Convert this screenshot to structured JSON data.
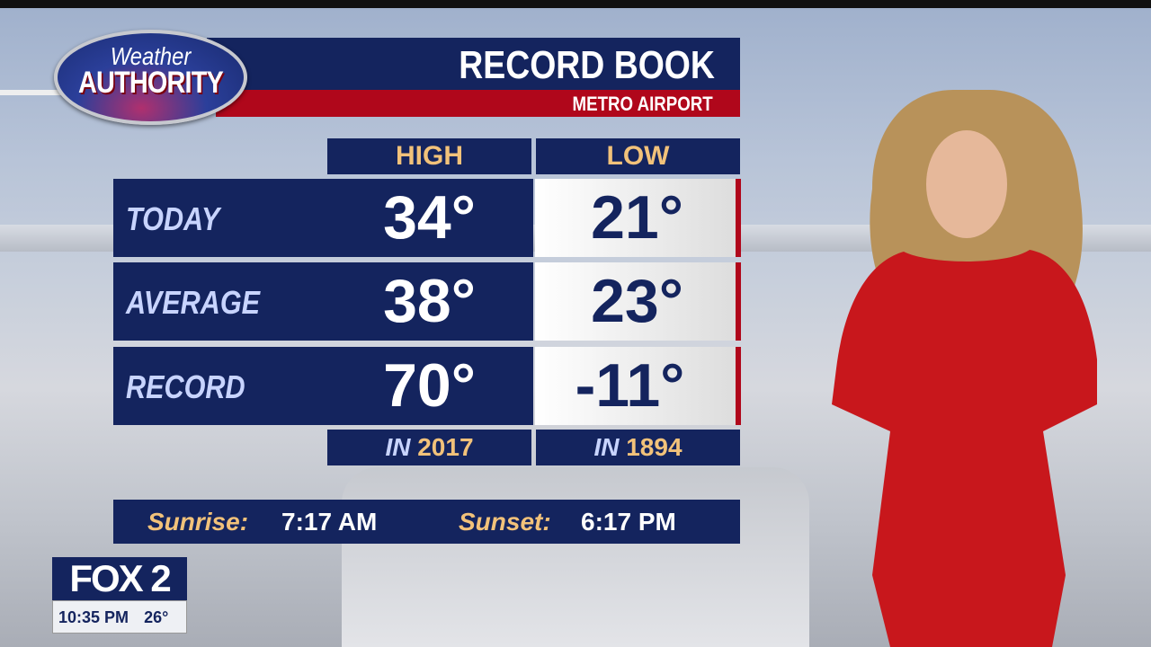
{
  "logo": {
    "line1": "Weather",
    "line2": "AUTHORITY"
  },
  "header": {
    "title": "RECORD BOOK",
    "subtitle": "METRO AIRPORT"
  },
  "columns": [
    "HIGH",
    "LOW"
  ],
  "rows": [
    {
      "label": "TODAY",
      "high": "34°",
      "low": "21°"
    },
    {
      "label": "AVERAGE",
      "high": "38°",
      "low": "23°"
    },
    {
      "label": "RECORD",
      "high": "70°",
      "low": "-11°"
    }
  ],
  "record_years": {
    "prefix": "IN",
    "high": "2017",
    "low": "1894"
  },
  "sun": {
    "sunrise_label": "Sunrise:",
    "sunrise": "7:17 AM",
    "sunset_label": "Sunset:",
    "sunset": "6:17 PM"
  },
  "station": {
    "name": "FOX 2",
    "time": "10:35 PM",
    "temp": "26°"
  },
  "colors": {
    "navy": "#14245e",
    "red": "#b0071b",
    "gold": "#f2c27a"
  }
}
